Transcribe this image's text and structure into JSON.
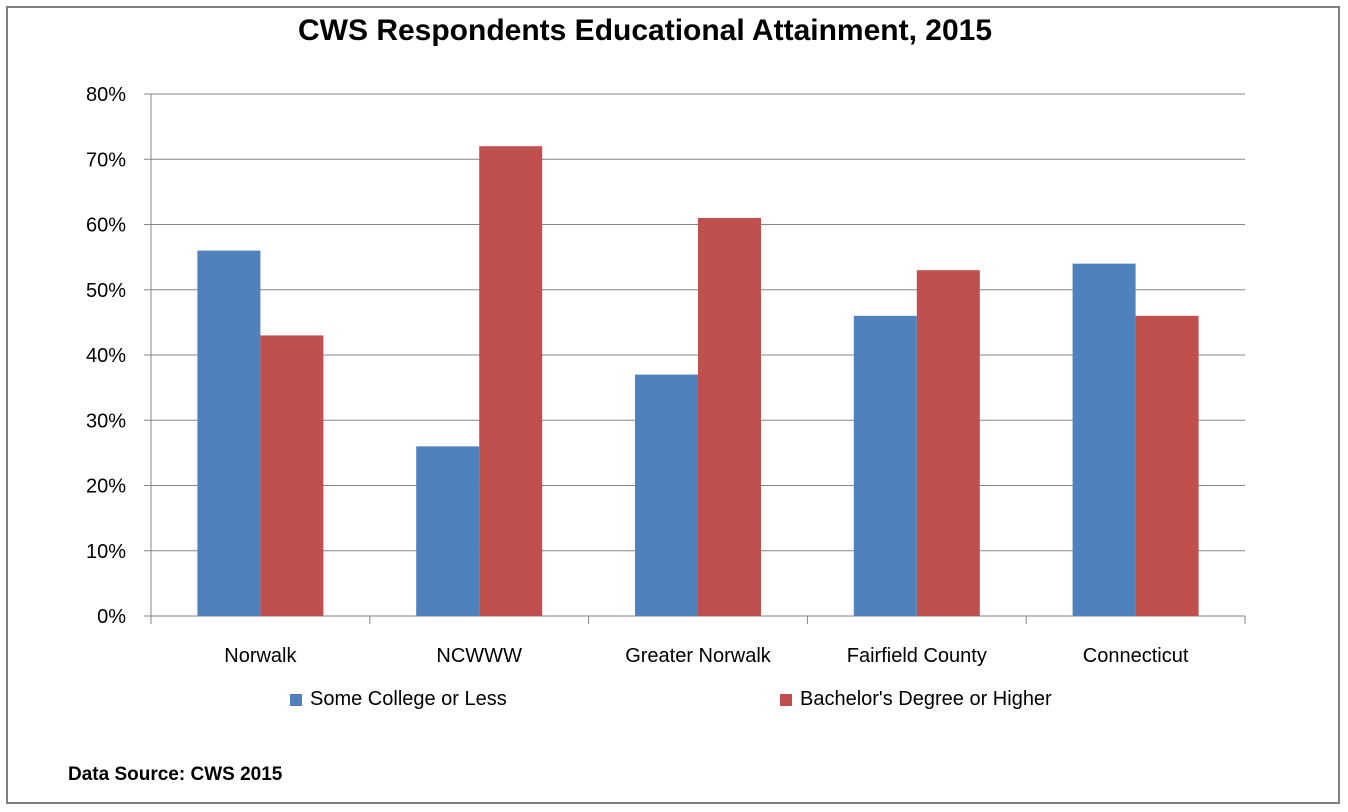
{
  "chart_data": {
    "type": "bar",
    "title": "CWS Respondents Educational Attainment, 2015",
    "categories": [
      "Norwalk",
      "NCWWW",
      "Greater Norwalk",
      "Fairfield County",
      "Connecticut"
    ],
    "series": [
      {
        "name": "Some College or Less",
        "color": "#4f81bd",
        "values": [
          56,
          26,
          37,
          46,
          54
        ]
      },
      {
        "name": "Bachelor's Degree or Higher",
        "color": "#c0504d",
        "values": [
          43,
          72,
          61,
          53,
          46
        ]
      }
    ],
    "ylim": [
      0,
      80
    ],
    "yticks": [
      "0%",
      "10%",
      "20%",
      "30%",
      "40%",
      "50%",
      "60%",
      "70%",
      "80%"
    ],
    "grid": true,
    "legend_position": "bottom",
    "source_note": "Data Source: CWS 2015"
  }
}
